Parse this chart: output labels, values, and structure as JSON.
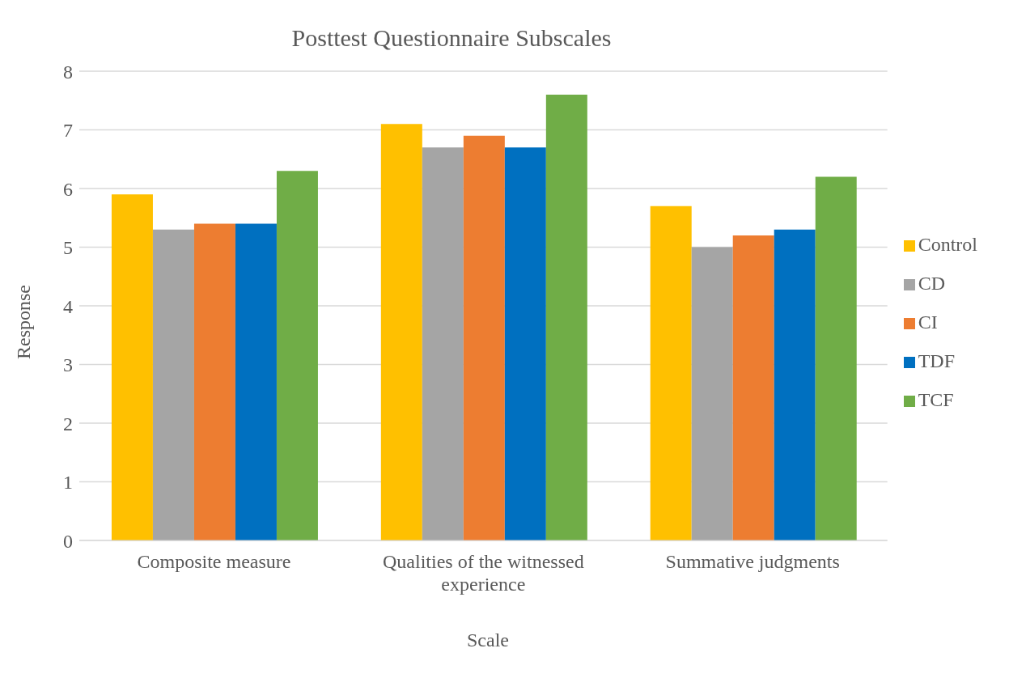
{
  "chart_data": {
    "type": "bar",
    "title": "Posttest Questionnaire Subscales",
    "xlabel": "Scale",
    "ylabel": "Response",
    "categories": [
      "Composite measure",
      "Qualities of the witnessed experience",
      "Summative judgments"
    ],
    "series": [
      {
        "name": "Control",
        "color": "#ffc000",
        "values": [
          5.9,
          7.1,
          5.7
        ]
      },
      {
        "name": "CD",
        "color": "#a5a5a5",
        "values": [
          5.3,
          6.7,
          5.0
        ]
      },
      {
        "name": "CI",
        "color": "#ed7d31",
        "values": [
          5.4,
          6.9,
          5.2
        ]
      },
      {
        "name": "TDF",
        "color": "#0070c0",
        "values": [
          5.4,
          6.7,
          5.3
        ]
      },
      {
        "name": "TCF",
        "color": "#70ad47",
        "values": [
          6.3,
          7.6,
          6.2
        ]
      }
    ],
    "ylim": [
      0,
      8
    ],
    "yticks": [
      0,
      1,
      2,
      3,
      4,
      5,
      6,
      7,
      8
    ],
    "grid": "y",
    "legend": "right"
  }
}
